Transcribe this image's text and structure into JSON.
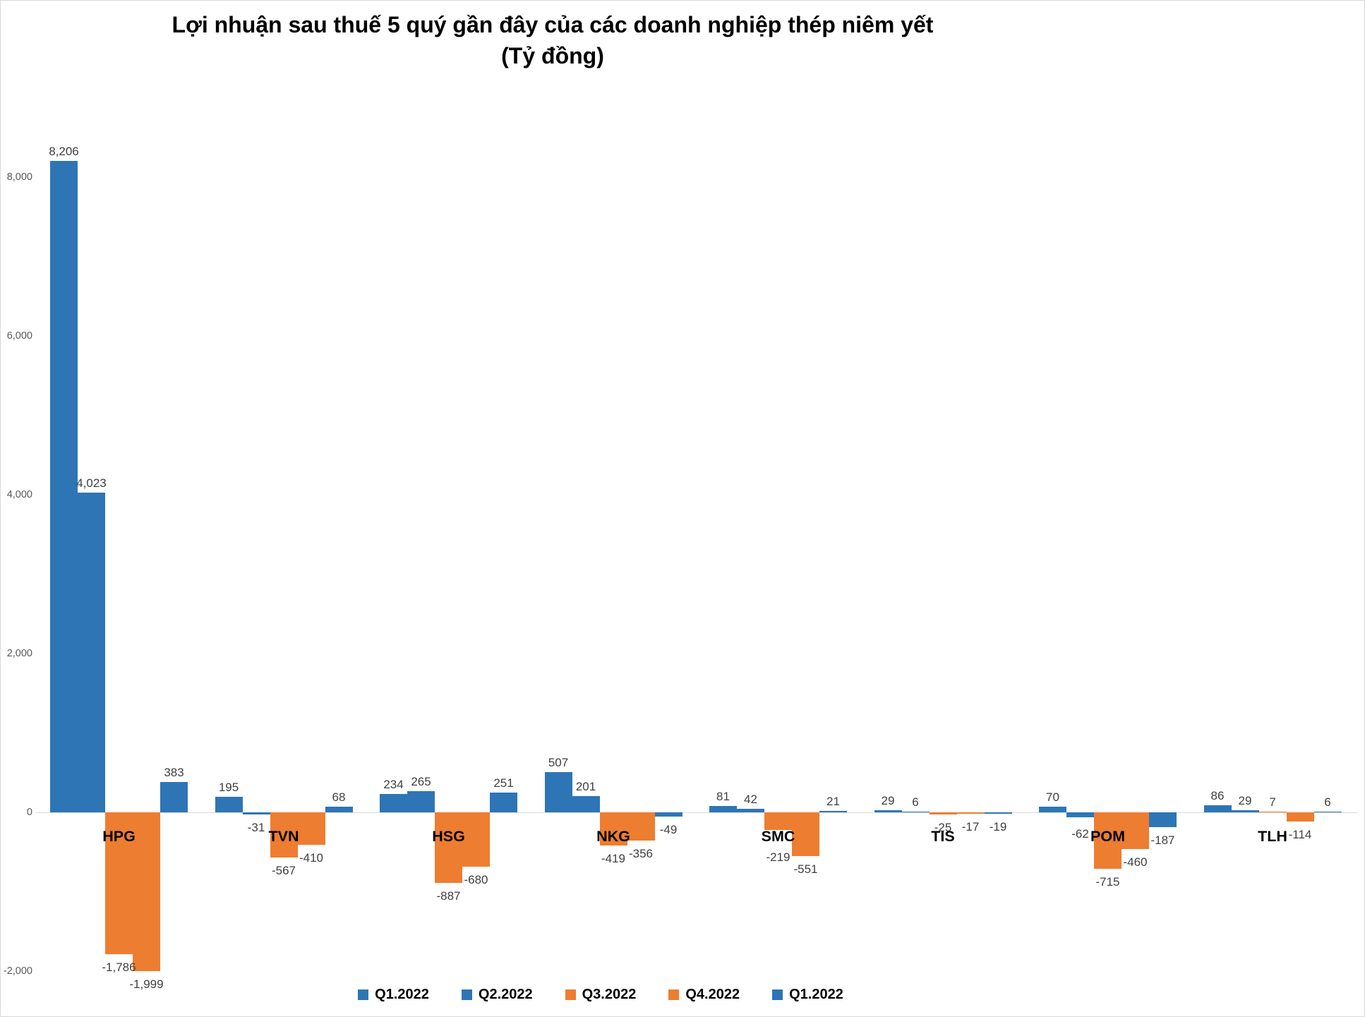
{
  "title": {
    "line1": "Lợi nhuận sau thuế 5 quý gần đây của các doanh nghiệp thép niêm yết",
    "line2": "(Tỷ đồng)"
  },
  "colors": {
    "blue": "#2E75B6",
    "orange": "#ED7D31",
    "axis_line": "#D9D9D9",
    "tick_label": "#595959",
    "value_label": "#404040",
    "category_label": "#000000"
  },
  "chart_data": {
    "type": "bar",
    "title": "Lợi nhuận sau thuế 5 quý gần đây của các doanh nghiệp thép niêm yết (Tỷ đồng)",
    "categories": [
      "HPG",
      "TVN",
      "HSG",
      "NKG",
      "SMC",
      "TIS",
      "POM",
      "TLH"
    ],
    "series": [
      {
        "name": "Q1.2022",
        "color_key": "blue",
        "values": [
          8206,
          195,
          234,
          507,
          81,
          29,
          70,
          86
        ]
      },
      {
        "name": "Q2.2022",
        "color_key": "blue",
        "values": [
          4023,
          -31,
          265,
          201,
          42,
          6,
          -62,
          29
        ]
      },
      {
        "name": "Q3.2022",
        "color_key": "orange",
        "values": [
          -1786,
          -567,
          -887,
          -419,
          -219,
          -25,
          -715,
          7
        ]
      },
      {
        "name": "Q4.2022",
        "color_key": "orange",
        "values": [
          -1999,
          -410,
          -680,
          -356,
          -551,
          -17,
          -460,
          -114
        ]
      },
      {
        "name": "Q1.2022",
        "color_key": "blue",
        "values": [
          383,
          68,
          251,
          -49,
          21,
          -19,
          -187,
          6
        ]
      }
    ],
    "y_ticks": [
      8000,
      6000,
      4000,
      2000,
      0,
      -2000
    ],
    "ylim": [
      -2400,
      8900
    ],
    "grid": false,
    "legend_position": "bottom",
    "data_labels": true
  }
}
